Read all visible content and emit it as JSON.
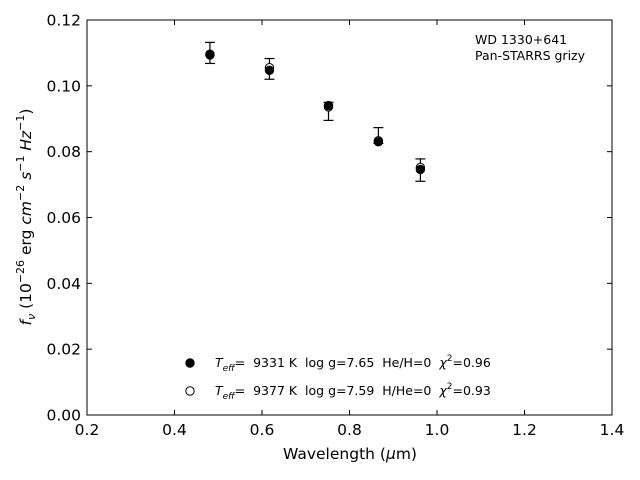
{
  "chart_data": {
    "type": "scatter",
    "title": "",
    "annotation": [
      "WD 1330+641",
      "Pan-STARRS grizy"
    ],
    "xlabel": "Wavelength (μm)",
    "ylabel": "f_ν (10^-26 erg cm^-2 s^-1 Hz^-1)",
    "xlim": [
      0.2,
      1.4
    ],
    "ylim": [
      0.0,
      0.12
    ],
    "x_ticks": [
      "0.2",
      "0.4",
      "0.6",
      "0.8",
      "1.0",
      "1.2",
      "1.4"
    ],
    "y_ticks": [
      "0.00",
      "0.02",
      "0.04",
      "0.06",
      "0.08",
      "0.10",
      "0.12"
    ],
    "grid": false,
    "legend_position": "bottom-center",
    "observed": {
      "x": [
        0.481,
        0.617,
        0.752,
        0.866,
        0.962
      ],
      "y": [
        0.11,
        0.1052,
        0.094,
        0.0838,
        0.0743
      ],
      "yerr_low": [
        0.1068,
        0.102,
        0.0895,
        0.0825,
        0.071
      ],
      "yerr_high": [
        0.1132,
        0.1083,
        0.095,
        0.0873,
        0.0778
      ]
    },
    "series": [
      {
        "name": "T_eff= 9331 K log g=7.65 He/H=0 χ²=0.96",
        "marker": "filled-circle",
        "x": [
          0.481,
          0.617,
          0.752,
          0.866,
          0.962
        ],
        "y": [
          0.1094,
          0.1047,
          0.094,
          0.083,
          0.0746
        ]
      },
      {
        "name": "T_eff= 9377 K log g=7.59 H/He=0 χ²=0.93",
        "marker": "open-circle",
        "x": [
          0.481,
          0.617,
          0.752,
          0.866,
          0.962
        ],
        "y": [
          0.1096,
          0.1055,
          0.0936,
          0.0833,
          0.0752
        ]
      }
    ],
    "legend": [
      {
        "marker": "filled-circle",
        "teff_label": "T",
        "teff_sub": "eff",
        "text": "=  9331 K  log g=7.65  He/H=0  ",
        "chi": "χ",
        "chi_sup": "2",
        "chi_val": "=0.96"
      },
      {
        "marker": "open-circle",
        "teff_label": "T",
        "teff_sub": "eff",
        "text": "=  9377 K  log g=7.59  H/He=0  ",
        "chi": "χ",
        "chi_sup": "2",
        "chi_val": "=0.93"
      }
    ],
    "colors": {
      "marker": "#000000",
      "axes": "#000000",
      "background": "#ffffff"
    }
  }
}
